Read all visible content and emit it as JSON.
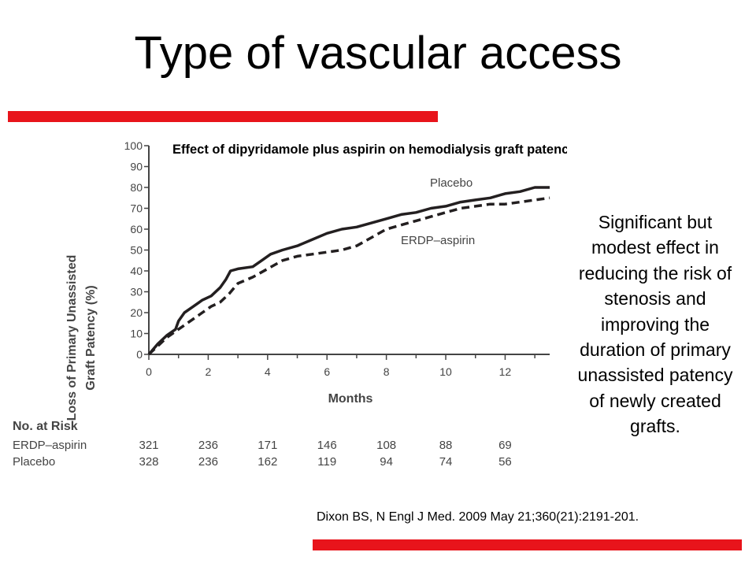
{
  "slide": {
    "title": "Type of vascular access",
    "note": "Significant but modest effect in reducing the risk of stenosis and improving the duration of primary unassisted patency of newly created grafts.",
    "citation": "Dixon BS, N Engl J Med. 2009 May 21;360(21):2191-201.",
    "accent_color": "#e8141b"
  },
  "chart_data": {
    "type": "line",
    "title": "Effect of dipyridamole plus aspirin on hemodialysis graft patency.",
    "xlabel": "Months",
    "ylabel": "Loss of Primary Unassisted Graft Patency (%)",
    "ylabel_lines": [
      "Loss of Primary Unassisted",
      "Graft Patency (%)"
    ],
    "xlim": [
      0,
      13.5
    ],
    "ylim": [
      0,
      100
    ],
    "x_ticks": [
      0,
      2,
      4,
      6,
      8,
      10,
      12
    ],
    "y_ticks": [
      0,
      10,
      20,
      30,
      40,
      50,
      60,
      70,
      80,
      90,
      100
    ],
    "series": [
      {
        "name": "Placebo",
        "style": "solid",
        "color": "#231f20",
        "x": [
          0,
          0.3,
          0.6,
          0.9,
          1.0,
          1.2,
          1.5,
          1.8,
          2.1,
          2.4,
          2.6,
          2.75,
          3.0,
          3.5,
          3.8,
          4.1,
          4.5,
          5.0,
          5.5,
          6.0,
          6.5,
          7.0,
          7.5,
          8.0,
          8.5,
          9.0,
          9.5,
          10.0,
          10.5,
          11.0,
          11.5,
          12.0,
          12.5,
          13.0,
          13.5
        ],
        "values": [
          0,
          5,
          9,
          12,
          16,
          20,
          23,
          26,
          28,
          32,
          36,
          40,
          41,
          42,
          45,
          48,
          50,
          52,
          55,
          58,
          60,
          61,
          63,
          65,
          67,
          68,
          70,
          71,
          73,
          74,
          75,
          77,
          78,
          80,
          80
        ]
      },
      {
        "name": "ERDP–aspirin",
        "style": "dashed",
        "color": "#231f20",
        "x": [
          0,
          0.3,
          0.6,
          0.9,
          1.2,
          1.5,
          1.8,
          2.1,
          2.4,
          2.7,
          3.0,
          3.5,
          4.0,
          4.5,
          5.0,
          5.5,
          6.0,
          6.5,
          7.0,
          7.5,
          8.0,
          8.5,
          9.0,
          9.5,
          10.0,
          10.5,
          11.0,
          11.5,
          12.0,
          12.5,
          13.0,
          13.5
        ],
        "values": [
          0,
          4,
          8,
          11,
          14,
          17,
          20,
          23,
          25,
          29,
          34,
          37,
          41,
          45,
          47,
          48,
          49,
          50,
          52,
          56,
          60,
          62,
          64,
          66,
          68,
          70,
          71,
          72,
          72,
          73,
          74,
          75
        ]
      }
    ],
    "annotations": [
      "Placebo",
      "ERDP–aspirin"
    ],
    "risk_table": {
      "header": "No. at Risk",
      "rows": [
        {
          "label": "ERDP–aspirin",
          "values": [
            "321",
            "236",
            "171",
            "146",
            "108",
            "88",
            "69"
          ]
        },
        {
          "label": "Placebo",
          "values": [
            "328",
            "236",
            "162",
            "119",
            "94",
            "74",
            "56"
          ]
        }
      ]
    }
  }
}
